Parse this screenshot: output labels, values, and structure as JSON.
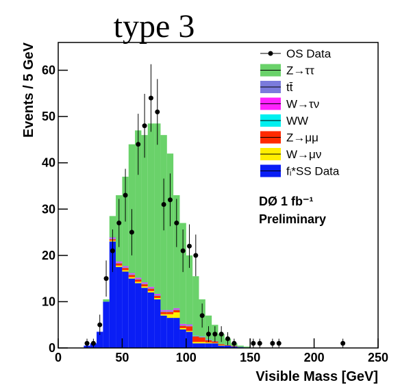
{
  "chart_data": {
    "type": "stacked-histogram",
    "title": "type 3",
    "x_label": "Visible Mass [GeV]",
    "y_label": "Events / 5 GeV",
    "annotations": [
      "DØ 1 fb⁻¹",
      "Preliminary"
    ],
    "bins": [
      20,
      25,
      30,
      35,
      40,
      45,
      50,
      55,
      60,
      65,
      70,
      75,
      80,
      85,
      90,
      95,
      100,
      105,
      110,
      115,
      120,
      125,
      130,
      135,
      140,
      145,
      150
    ],
    "series": [
      {
        "name": "fᵢ*SS Data",
        "color": "#0a1ef5",
        "values": [
          0.5,
          1,
          3.5,
          10,
          23,
          17.5,
          16.5,
          15,
          14,
          13,
          12,
          10.5,
          7,
          6.5,
          6.5,
          4,
          3.5,
          1,
          1,
          1,
          1,
          0.5,
          0.5,
          0.3,
          0.2,
          0.1
        ]
      },
      {
        "name": "W→μν",
        "color": "#ffee00",
        "values": [
          0,
          0,
          0,
          0,
          0.2,
          0.3,
          0.3,
          0.3,
          0.3,
          0.3,
          0.3,
          0.3,
          0.3,
          0.8,
          1.2,
          0.3,
          0.2,
          0.3,
          0.3,
          0.2,
          0.1,
          0.1,
          0,
          0,
          0,
          0
        ]
      },
      {
        "name": "Z→μμ",
        "color": "#ff2a00",
        "values": [
          0,
          0,
          0,
          0,
          0.3,
          0.5,
          0.5,
          0.5,
          0.5,
          0.5,
          0.5,
          0.5,
          0.5,
          0.5,
          0.5,
          0.5,
          1,
          1.2,
          1,
          0.5,
          0.3,
          0.2,
          0.1,
          0.1,
          0,
          0
        ]
      },
      {
        "name": "WW",
        "color": "#00f0f0",
        "values": [
          0,
          0,
          0,
          0,
          0.1,
          0.1,
          0.1,
          0.1,
          0.1,
          0.1,
          0.1,
          0.1,
          0.1,
          0.1,
          0.1,
          0.1,
          0.1,
          0.1,
          0.1,
          0.1,
          0,
          0,
          0,
          0,
          0,
          0
        ]
      },
      {
        "name": "W→τν",
        "color": "#ff22ff",
        "values": [
          0,
          0,
          0,
          0,
          0.2,
          0.2,
          0.2,
          0.2,
          0.2,
          0.2,
          0.2,
          0.2,
          0.2,
          0.2,
          0.2,
          0.2,
          0.2,
          0,
          0,
          0,
          0,
          0,
          0,
          0,
          0,
          0
        ]
      },
      {
        "name": "tt̄",
        "color": "#7b7bdc",
        "values": [
          0,
          0,
          0,
          0,
          0.1,
          0.1,
          0.1,
          0.1,
          0.1,
          0.1,
          0.1,
          0.1,
          0.1,
          0.1,
          0.1,
          0.1,
          0.1,
          0.1,
          0.1,
          0.1,
          0.1,
          0,
          0,
          0,
          0,
          0
        ]
      },
      {
        "name": "Z→ττ",
        "color": "#6ad26a",
        "values": [
          0,
          0,
          0,
          0.5,
          4.6,
          14.3,
          19.3,
          27.8,
          31.8,
          31.8,
          35.3,
          36.8,
          37.8,
          33.8,
          24.4,
          21.8,
          14.9,
          12.8,
          8,
          5.1,
          3.5,
          2.2,
          1.4,
          0.6,
          0.3,
          0.2
        ]
      }
    ],
    "points": {
      "name": "OS Data",
      "color": "#000000",
      "x": [
        22.5,
        27.5,
        32.5,
        37.5,
        42.5,
        47.5,
        52.5,
        57.5,
        62.5,
        67.5,
        72.5,
        77.5,
        82.5,
        87.5,
        92.5,
        97.5,
        102.5,
        107.5,
        112.5,
        117.5,
        122.5,
        127.5,
        132.5,
        137.5,
        152.5,
        157.5,
        167.5,
        172.5,
        222.5
      ],
      "values": [
        1,
        1,
        5,
        15,
        21,
        27,
        33,
        25,
        44,
        48,
        54,
        51,
        31,
        32,
        27,
        21,
        22,
        20,
        7,
        3,
        3,
        3,
        2,
        1,
        1,
        1,
        1,
        1,
        1
      ],
      "errors": [
        1,
        1,
        2.2,
        3.9,
        4.6,
        5.2,
        5.7,
        5,
        6.6,
        6.9,
        7.3,
        7.1,
        5.6,
        5.7,
        5.2,
        4.6,
        4.7,
        4.5,
        2.6,
        1.7,
        1.7,
        1.7,
        1.4,
        1,
        1,
        1,
        1,
        1,
        1
      ]
    },
    "xlim": [
      0,
      250
    ],
    "xticks": [
      0,
      50,
      100,
      150,
      200,
      250
    ],
    "ylim": [
      0,
      66
    ],
    "yticks": [
      0,
      10,
      20,
      30,
      40,
      50,
      60
    ],
    "legend": "top-right"
  }
}
